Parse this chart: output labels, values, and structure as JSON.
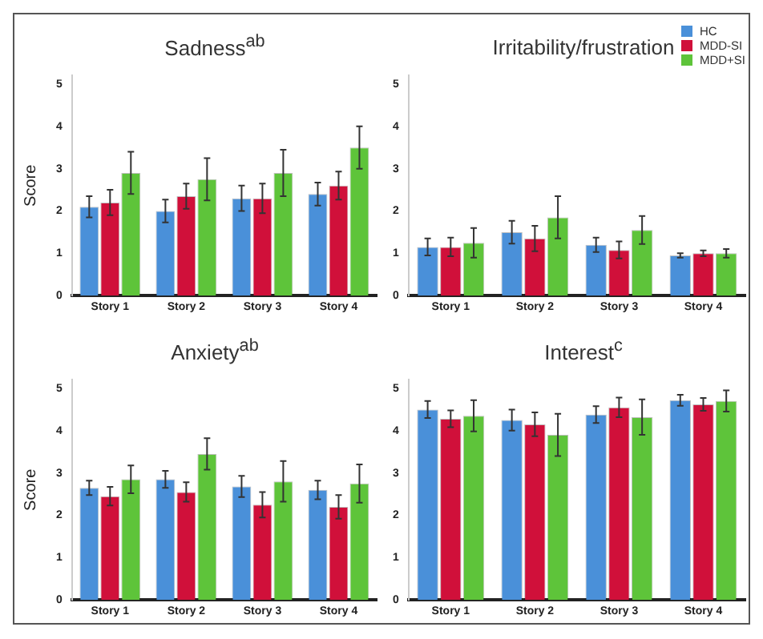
{
  "chart_data": [
    {
      "type": "bar",
      "title": "Sadness$^{ab}$",
      "ylabel": "Score",
      "categories": [
        "Story 1",
        "Story 2",
        "Story 3",
        "Story 4"
      ],
      "ylim": [
        0,
        5.2
      ],
      "yticks": [
        0,
        1,
        2,
        3,
        4,
        5
      ],
      "grid": false,
      "legend": false,
      "series": [
        {
          "color": "#4a90d9",
          "values": [
            2.1,
            2.0,
            2.3,
            2.4
          ],
          "errors": [
            0.25,
            0.27,
            0.3,
            0.27
          ]
        },
        {
          "color": "#d0103a",
          "values": [
            2.2,
            2.35,
            2.3,
            2.6
          ],
          "errors": [
            0.3,
            0.3,
            0.35,
            0.33
          ]
        },
        {
          "color": "#5ec43a",
          "values": [
            2.9,
            2.75,
            2.9,
            3.5
          ],
          "errors": [
            0.5,
            0.5,
            0.55,
            0.5
          ]
        }
      ]
    },
    {
      "type": "bar",
      "title": "Irritability/frustration",
      "categories": [
        "Story 1",
        "Story 2",
        "Story 3",
        "Story 4"
      ],
      "ylim": [
        0,
        5.2
      ],
      "yticks": [
        0,
        1,
        2,
        3,
        4,
        5
      ],
      "grid": false,
      "legend": "top right",
      "series": [
        {
          "name": "HC",
          "color": "#4a90d9",
          "values": [
            1.15,
            1.5,
            1.2,
            0.95
          ],
          "errors": [
            0.2,
            0.27,
            0.17,
            0.05
          ]
        },
        {
          "name": "MDD-SI",
          "color": "#d0103a",
          "values": [
            1.15,
            1.35,
            1.08,
            1.0
          ],
          "errors": [
            0.22,
            0.3,
            0.2,
            0.07
          ]
        },
        {
          "name": "MDD+SI",
          "color": "#5ec43a",
          "values": [
            1.25,
            1.85,
            1.55,
            1.0
          ],
          "errors": [
            0.35,
            0.5,
            0.33,
            0.1
          ]
        }
      ]
    },
    {
      "type": "bar",
      "title": "Anxiety$^{ab}$",
      "ylabel": "Score",
      "categories": [
        "Story 1",
        "Story 2",
        "Story 3",
        "Story 4"
      ],
      "ylim": [
        0,
        5.2
      ],
      "yticks": [
        0,
        1,
        2,
        3,
        4,
        5
      ],
      "grid": false,
      "legend": false,
      "series": [
        {
          "color": "#4a90d9",
          "values": [
            2.65,
            2.85,
            2.68,
            2.6
          ],
          "errors": [
            0.17,
            0.2,
            0.25,
            0.22
          ]
        },
        {
          "color": "#d0103a",
          "values": [
            2.45,
            2.55,
            2.25,
            2.2
          ],
          "errors": [
            0.22,
            0.23,
            0.3,
            0.28
          ]
        },
        {
          "color": "#5ec43a",
          "values": [
            2.85,
            3.45,
            2.8,
            2.75
          ],
          "errors": [
            0.33,
            0.37,
            0.48,
            0.45
          ]
        }
      ]
    },
    {
      "type": "bar",
      "title": "Interest$^{c}$",
      "categories": [
        "Story 1",
        "Story 2",
        "Story 3",
        "Story 4"
      ],
      "ylim": [
        0,
        5.2
      ],
      "yticks": [
        0,
        1,
        2,
        3,
        4,
        5
      ],
      "grid": false,
      "legend": false,
      "series": [
        {
          "color": "#4a90d9",
          "values": [
            4.5,
            4.25,
            4.38,
            4.72
          ],
          "errors": [
            0.2,
            0.25,
            0.2,
            0.13
          ]
        },
        {
          "color": "#d0103a",
          "values": [
            4.28,
            4.15,
            4.55,
            4.62
          ],
          "errors": [
            0.2,
            0.28,
            0.23,
            0.15
          ]
        },
        {
          "color": "#5ec43a",
          "values": [
            4.35,
            3.9,
            4.32,
            4.7
          ],
          "errors": [
            0.37,
            0.5,
            0.42,
            0.25
          ]
        }
      ]
    }
  ]
}
